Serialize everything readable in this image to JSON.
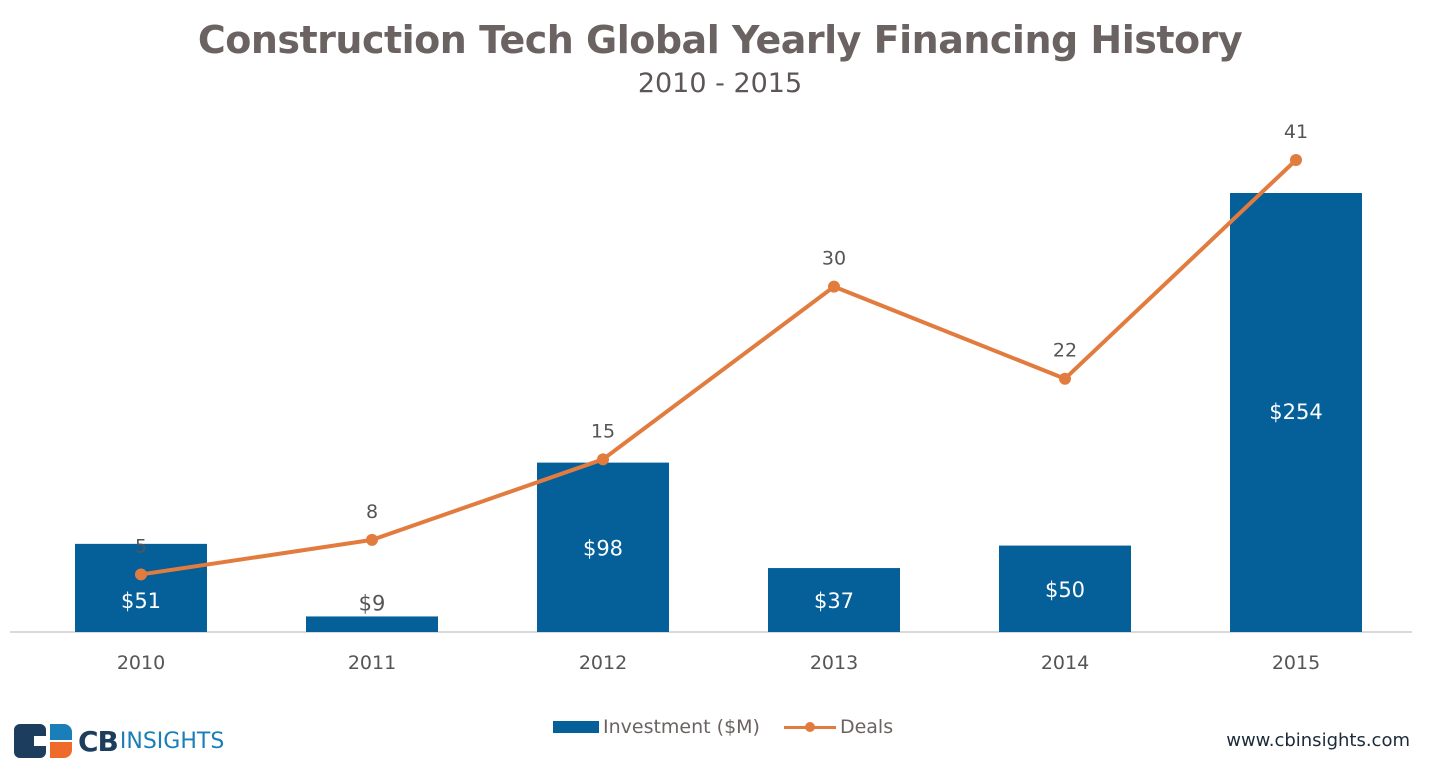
{
  "chart_data": {
    "type": "bar",
    "title": "Construction Tech  Global Yearly Financing History",
    "subtitle": "2010 - 2015",
    "xlabel": "",
    "ylabel": "",
    "categories": [
      "2010",
      "2011",
      "2012",
      "2013",
      "2014",
      "2015"
    ],
    "series": [
      {
        "name": "Investment ($M)",
        "type": "bar",
        "color": "#05609a",
        "values": [
          51,
          9,
          98,
          37,
          50,
          254
        ],
        "labels": [
          "$51",
          "$9",
          "$98",
          "$37",
          "$50",
          "$254"
        ]
      },
      {
        "name": "Deals",
        "type": "line",
        "color": "#e27c3e",
        "values": [
          5,
          8,
          15,
          30,
          22,
          41
        ],
        "labels": [
          "5",
          "8",
          "15",
          "30",
          "22",
          "41"
        ]
      }
    ],
    "ylim_investment": [
      0,
      254
    ],
    "ylim_deals": [
      0,
      41
    ],
    "grid": false,
    "legend_position": "bottom-center"
  },
  "footer": {
    "logo_cb": "CB",
    "logo_insights": "INSIGHTS",
    "url": "www.cbinsights.com"
  }
}
